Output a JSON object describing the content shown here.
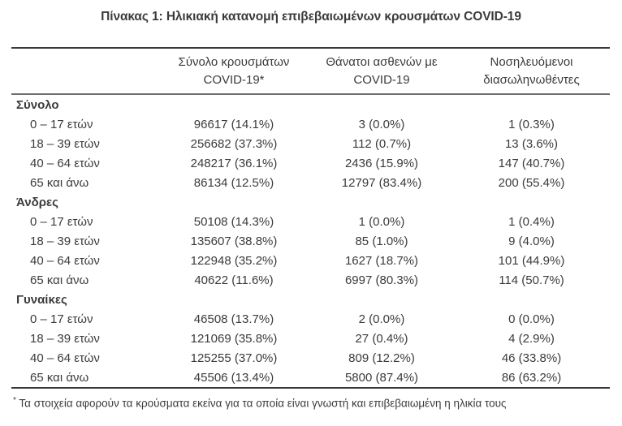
{
  "title": "Πίνακας 1: Ηλικιακή κατανομή επιβεβαιωμένων κρουσμάτων COVID-19",
  "table": {
    "col_headers": [
      {
        "line1": "Σύνολο κρουσμάτων",
        "line2": "COVID-19*"
      },
      {
        "line1": "Θάνατοι ασθενών με",
        "line2": "COVID-19"
      },
      {
        "line1": "Νοσηλευόμενοι",
        "line2": "διασωληνωθέντες"
      }
    ],
    "sections": [
      {
        "label": "Σύνολο",
        "rows": [
          {
            "age": "0 – 17 ετών",
            "cases": "96617 (14.1%)",
            "deaths": "3 (0.0%)",
            "intubated": "1 (0.3%)"
          },
          {
            "age": "18 – 39 ετών",
            "cases": "256682 (37.3%)",
            "deaths": "112 (0.7%)",
            "intubated": "13 (3.6%)"
          },
          {
            "age": "40 – 64 ετών",
            "cases": "248217 (36.1%)",
            "deaths": "2436 (15.9%)",
            "intubated": "147 (40.7%)"
          },
          {
            "age": "65 και άνω",
            "cases": "86134 (12.5%)",
            "deaths": "12797 (83.4%)",
            "intubated": "200 (55.4%)"
          }
        ]
      },
      {
        "label": "Άνδρες",
        "rows": [
          {
            "age": "0 – 17 ετών",
            "cases": "50108 (14.3%)",
            "deaths": "1 (0.0%)",
            "intubated": "1 (0.4%)"
          },
          {
            "age": "18 – 39 ετών",
            "cases": "135607 (38.8%)",
            "deaths": "85 (1.0%)",
            "intubated": "9 (4.0%)"
          },
          {
            "age": "40 – 64 ετών",
            "cases": "122948 (35.2%)",
            "deaths": "1627 (18.7%)",
            "intubated": "101 (44.9%)"
          },
          {
            "age": "65 και άνω",
            "cases": "40622 (11.6%)",
            "deaths": "6997 (80.3%)",
            "intubated": "114 (50.7%)"
          }
        ]
      },
      {
        "label": "Γυναίκες",
        "rows": [
          {
            "age": "0 – 17 ετών",
            "cases": "46508 (13.7%)",
            "deaths": "2 (0.0%)",
            "intubated": "0 (0.0%)"
          },
          {
            "age": "18 – 39 ετών",
            "cases": "121069 (35.8%)",
            "deaths": "27 (0.4%)",
            "intubated": "4 (2.9%)"
          },
          {
            "age": "40 – 64 ετών",
            "cases": "125255 (37.0%)",
            "deaths": "809 (12.2%)",
            "intubated": "46 (33.8%)"
          },
          {
            "age": "65 και άνω",
            "cases": "45506 (13.4%)",
            "deaths": "5800 (87.4%)",
            "intubated": "86 (63.2%)"
          }
        ]
      }
    ]
  },
  "footnote": {
    "marker": "*",
    "text": "Τα στοιχεία αφορούν τα κρούσματα εκείνα για τα οποία είναι γνωστή και επιβεβαιωμένη η ηλικία τους"
  },
  "colors": {
    "text": "#3b3b3b",
    "rule_heavy": "#3a3a3a",
    "rule_light": "#6d6d6d",
    "background": "#ffffff"
  }
}
